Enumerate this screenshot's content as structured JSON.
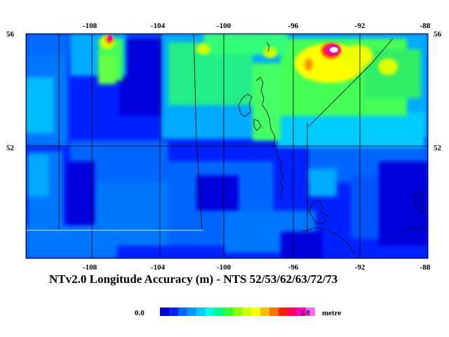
{
  "title": "NTv2.0 Longitude Accuracy (m) - NTS 52/53/62/63/72/73",
  "axes": {
    "lon_ticks_top": [
      "-108",
      "-104",
      "-100",
      "-96",
      "-92",
      "-88"
    ],
    "lon_ticks_bottom": [
      "-108",
      "-104",
      "-100",
      "-96",
      "-92",
      "-88"
    ],
    "lat_ticks_left": [
      "56",
      "52"
    ],
    "lat_ticks_right": [
      "56",
      "52"
    ],
    "lon_range": [
      -112,
      -88
    ],
    "lat_range": [
      48,
      56
    ]
  },
  "legend": {
    "min_label": "0.0",
    "max_label": "2.0",
    "unit": "metre",
    "colors": [
      "#0000dd",
      "#0022ff",
      "#0066ff",
      "#0099ff",
      "#00ccff",
      "#00ffdd",
      "#00ff88",
      "#33ff33",
      "#88ff00",
      "#ccff00",
      "#ffff00",
      "#ffbb00",
      "#ff7700",
      "#ff2200",
      "#ff0066",
      "#ff00cc",
      "#ff66ff"
    ]
  },
  "colors": {
    "ocean_base": "#0022ff",
    "deep": "#0000dd",
    "mid": "#0088ff",
    "light": "#00ddff",
    "green": "#33ff66",
    "yellow": "#ffff00",
    "hot": "#ff00aa"
  }
}
